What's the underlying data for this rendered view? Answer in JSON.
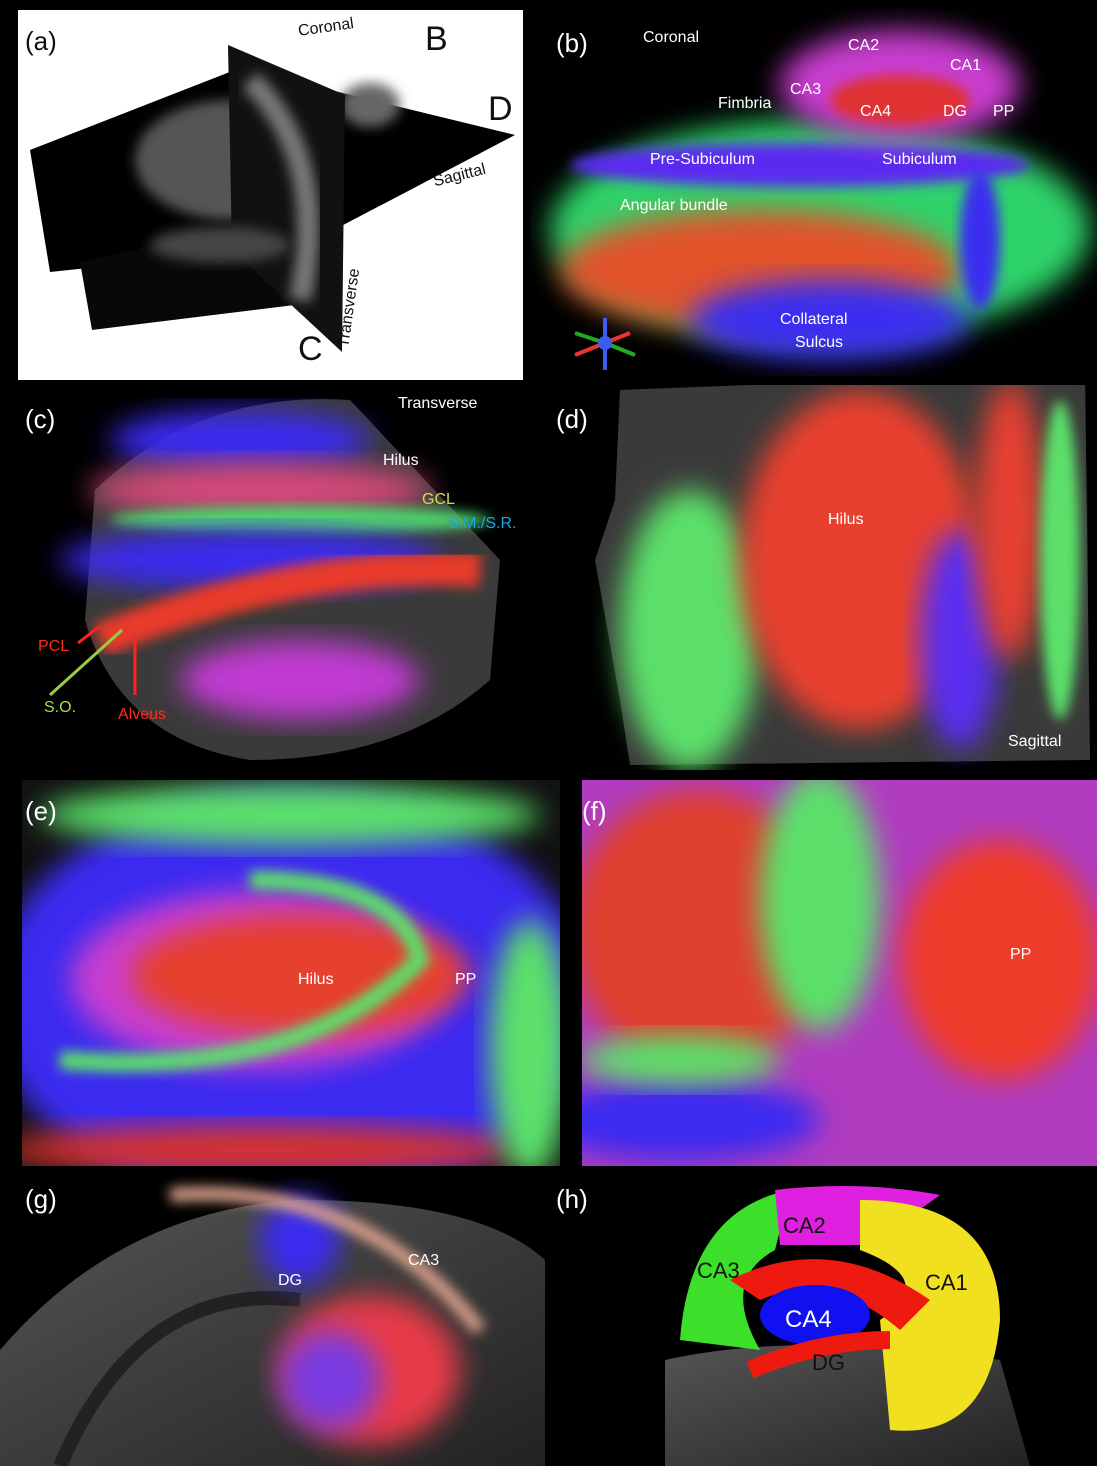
{
  "panels": [
    {
      "label": "(a)",
      "annotations": [
        "Coronal",
        "B",
        "D",
        "Sagittal",
        "Transverse",
        "C"
      ]
    },
    {
      "label": "(b)",
      "annotations": [
        "Coronal",
        "CA2",
        "CA1",
        "CA3",
        "Fimbria",
        "CA4",
        "DG",
        "PP",
        "Pre-Subiculum",
        "Subiculum",
        "Angular bundle",
        "Collateral",
        "Sulcus"
      ]
    },
    {
      "label": "(c)",
      "annotations": [
        "Transverse",
        "Hilus",
        "GCL",
        "S.M./S.R.",
        "PCL",
        "S.O.",
        "Alveus"
      ]
    },
    {
      "label": "(d)",
      "annotations": [
        "Hilus",
        "Sagittal"
      ]
    },
    {
      "label": "(e)",
      "annotations": [
        "Hilus",
        "PP"
      ]
    },
    {
      "label": "(f)",
      "annotations": [
        "PP"
      ]
    },
    {
      "label": "(g)",
      "annotations": [
        "DG",
        "CA3"
      ]
    },
    {
      "label": "(h)",
      "annotations": [
        "CA2",
        "CA3",
        "CA1",
        "CA4",
        "DG"
      ]
    }
  ]
}
